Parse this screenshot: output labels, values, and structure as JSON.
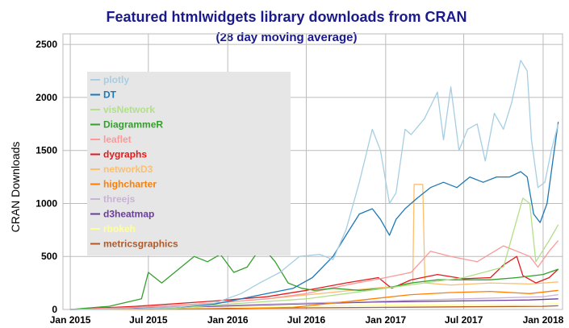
{
  "chart_data": {
    "type": "line",
    "title": "Featured htmlwidgets library downloads from CRAN",
    "subtitle": "(28 day moving average)",
    "xlabel": "",
    "ylabel": "CRAN Downloads",
    "ylim": [
      0,
      2600
    ],
    "yticks": [
      0,
      500,
      1000,
      1500,
      2000,
      2500
    ],
    "xlim": [
      "2014-12-15",
      "2018-02-15"
    ],
    "xticks": [
      {
        "date": "2015-01-01",
        "label": "Jan 2015"
      },
      {
        "date": "2015-07-01",
        "label": "Jul 2015"
      },
      {
        "date": "2016-01-01",
        "label": "Jan 2016"
      },
      {
        "date": "2016-07-01",
        "label": "Jul 2016"
      },
      {
        "date": "2017-01-01",
        "label": "Jan 2017"
      },
      {
        "date": "2017-07-01",
        "label": "Jul 2017"
      },
      {
        "date": "2018-01-01",
        "label": "Jan 2018"
      }
    ],
    "grid": true,
    "legend_position": "top-left",
    "series": [
      {
        "name": "plotly",
        "color": "#a6cee3",
        "points": [
          [
            "2015-01-01",
            0
          ],
          [
            "2015-06-01",
            5
          ],
          [
            "2015-09-01",
            20
          ],
          [
            "2015-12-01",
            60
          ],
          [
            "2016-02-01",
            150
          ],
          [
            "2016-03-15",
            250
          ],
          [
            "2016-05-01",
            350
          ],
          [
            "2016-06-15",
            500
          ],
          [
            "2016-08-01",
            520
          ],
          [
            "2016-09-01",
            470
          ],
          [
            "2016-10-01",
            750
          ],
          [
            "2016-11-01",
            1200
          ],
          [
            "2016-12-01",
            1700
          ],
          [
            "2016-12-20",
            1500
          ],
          [
            "2017-01-10",
            1000
          ],
          [
            "2017-01-25",
            1100
          ],
          [
            "2017-02-15",
            1700
          ],
          [
            "2017-03-01",
            1650
          ],
          [
            "2017-04-01",
            1800
          ],
          [
            "2017-05-01",
            2050
          ],
          [
            "2017-05-15",
            1600
          ],
          [
            "2017-06-01",
            2100
          ],
          [
            "2017-06-20",
            1500
          ],
          [
            "2017-07-10",
            1700
          ],
          [
            "2017-08-01",
            1750
          ],
          [
            "2017-08-20",
            1400
          ],
          [
            "2017-09-10",
            1850
          ],
          [
            "2017-10-01",
            1700
          ],
          [
            "2017-10-20",
            1950
          ],
          [
            "2017-11-10",
            2350
          ],
          [
            "2017-11-25",
            2250
          ],
          [
            "2017-12-05",
            1600
          ],
          [
            "2017-12-20",
            1150
          ],
          [
            "2018-01-05",
            1200
          ],
          [
            "2018-01-20",
            1500
          ],
          [
            "2018-02-05",
            1750
          ]
        ]
      },
      {
        "name": "DT",
        "color": "#1f78b4",
        "points": [
          [
            "2015-01-01",
            0
          ],
          [
            "2015-06-01",
            5
          ],
          [
            "2015-09-01",
            20
          ],
          [
            "2015-12-01",
            50
          ],
          [
            "2016-02-01",
            100
          ],
          [
            "2016-04-01",
            150
          ],
          [
            "2016-06-01",
            200
          ],
          [
            "2016-07-15",
            300
          ],
          [
            "2016-09-01",
            500
          ],
          [
            "2016-10-01",
            700
          ],
          [
            "2016-11-01",
            900
          ],
          [
            "2016-12-01",
            950
          ],
          [
            "2016-12-20",
            850
          ],
          [
            "2017-01-10",
            700
          ],
          [
            "2017-01-25",
            850
          ],
          [
            "2017-02-15",
            950
          ],
          [
            "2017-03-15",
            1050
          ],
          [
            "2017-04-15",
            1150
          ],
          [
            "2017-05-15",
            1200
          ],
          [
            "2017-06-15",
            1150
          ],
          [
            "2017-07-15",
            1250
          ],
          [
            "2017-08-15",
            1200
          ],
          [
            "2017-09-15",
            1250
          ],
          [
            "2017-10-15",
            1250
          ],
          [
            "2017-11-10",
            1300
          ],
          [
            "2017-11-25",
            1250
          ],
          [
            "2017-12-10",
            900
          ],
          [
            "2017-12-25",
            820
          ],
          [
            "2018-01-10",
            1000
          ],
          [
            "2018-01-25",
            1450
          ],
          [
            "2018-02-05",
            1770
          ]
        ]
      },
      {
        "name": "visNetwork",
        "color": "#b2df8a",
        "points": [
          [
            "2015-01-01",
            0
          ],
          [
            "2015-09-01",
            10
          ],
          [
            "2016-01-01",
            50
          ],
          [
            "2016-07-01",
            100
          ],
          [
            "2016-10-01",
            150
          ],
          [
            "2017-01-01",
            200
          ],
          [
            "2017-04-01",
            250
          ],
          [
            "2017-07-01",
            300
          ],
          [
            "2017-10-01",
            400
          ],
          [
            "2017-11-15",
            1050
          ],
          [
            "2017-12-01",
            1000
          ],
          [
            "2017-12-15",
            450
          ],
          [
            "2018-01-15",
            650
          ],
          [
            "2018-02-05",
            800
          ]
        ]
      },
      {
        "name": "DiagrammeR",
        "color": "#33a02c",
        "points": [
          [
            "2015-01-01",
            0
          ],
          [
            "2015-04-01",
            30
          ],
          [
            "2015-06-15",
            100
          ],
          [
            "2015-07-01",
            350
          ],
          [
            "2015-08-01",
            250
          ],
          [
            "2015-09-15",
            400
          ],
          [
            "2015-10-15",
            500
          ],
          [
            "2015-11-15",
            450
          ],
          [
            "2015-12-15",
            520
          ],
          [
            "2016-01-15",
            350
          ],
          [
            "2016-02-15",
            400
          ],
          [
            "2016-03-20",
            600
          ],
          [
            "2016-04-20",
            450
          ],
          [
            "2016-05-20",
            250
          ],
          [
            "2016-06-20",
            200
          ],
          [
            "2016-07-20",
            180
          ],
          [
            "2016-09-01",
            200
          ],
          [
            "2016-11-01",
            180
          ],
          [
            "2017-01-01",
            200
          ],
          [
            "2017-03-01",
            250
          ],
          [
            "2017-05-01",
            280
          ],
          [
            "2017-07-01",
            280
          ],
          [
            "2017-09-01",
            280
          ],
          [
            "2017-11-01",
            300
          ],
          [
            "2018-01-01",
            330
          ],
          [
            "2018-02-05",
            380
          ]
        ]
      },
      {
        "name": "leaflet",
        "color": "#fb9a99",
        "points": [
          [
            "2015-01-01",
            0
          ],
          [
            "2015-06-01",
            20
          ],
          [
            "2015-12-01",
            60
          ],
          [
            "2016-04-01",
            100
          ],
          [
            "2016-07-01",
            150
          ],
          [
            "2016-10-01",
            230
          ],
          [
            "2017-01-01",
            300
          ],
          [
            "2017-03-01",
            350
          ],
          [
            "2017-04-15",
            550
          ],
          [
            "2017-06-01",
            500
          ],
          [
            "2017-08-01",
            450
          ],
          [
            "2017-10-01",
            600
          ],
          [
            "2017-12-01",
            500
          ],
          [
            "2017-12-20",
            400
          ],
          [
            "2018-01-15",
            550
          ],
          [
            "2018-02-05",
            650
          ]
        ]
      },
      {
        "name": "dygraphs",
        "color": "#e31a1c",
        "points": [
          [
            "2015-01-01",
            0
          ],
          [
            "2015-06-01",
            30
          ],
          [
            "2015-12-01",
            80
          ],
          [
            "2016-04-01",
            120
          ],
          [
            "2016-07-01",
            180
          ],
          [
            "2016-10-01",
            250
          ],
          [
            "2016-12-15",
            300
          ],
          [
            "2017-01-15",
            200
          ],
          [
            "2017-03-01",
            280
          ],
          [
            "2017-05-01",
            330
          ],
          [
            "2017-07-01",
            290
          ],
          [
            "2017-09-01",
            300
          ],
          [
            "2017-10-01",
            420
          ],
          [
            "2017-11-01",
            500
          ],
          [
            "2017-11-15",
            320
          ],
          [
            "2017-12-15",
            250
          ],
          [
            "2018-01-15",
            300
          ],
          [
            "2018-02-05",
            380
          ]
        ]
      },
      {
        "name": "networkD3",
        "color": "#fdbf6f",
        "points": [
          [
            "2015-01-01",
            0
          ],
          [
            "2015-06-01",
            20
          ],
          [
            "2015-12-01",
            60
          ],
          [
            "2016-04-01",
            100
          ],
          [
            "2016-08-01",
            150
          ],
          [
            "2016-12-01",
            200
          ],
          [
            "2017-02-01",
            220
          ],
          [
            "2017-03-05",
            250
          ],
          [
            "2017-03-08",
            1180
          ],
          [
            "2017-03-28",
            1180
          ],
          [
            "2017-04-02",
            250
          ],
          [
            "2017-06-01",
            230
          ],
          [
            "2017-09-01",
            250
          ],
          [
            "2017-12-01",
            240
          ],
          [
            "2018-02-05",
            260
          ]
        ]
      },
      {
        "name": "highcharter",
        "color": "#ff7f00",
        "points": [
          [
            "2015-01-01",
            0
          ],
          [
            "2016-01-01",
            5
          ],
          [
            "2016-06-01",
            20
          ],
          [
            "2016-09-01",
            60
          ],
          [
            "2016-12-01",
            100
          ],
          [
            "2017-03-01",
            140
          ],
          [
            "2017-06-01",
            160
          ],
          [
            "2017-09-01",
            170
          ],
          [
            "2017-12-01",
            150
          ],
          [
            "2018-02-05",
            180
          ]
        ]
      },
      {
        "name": "threejs",
        "color": "#cab2d6",
        "points": [
          [
            "2015-01-01",
            0
          ],
          [
            "2015-06-01",
            20
          ],
          [
            "2016-01-01",
            40
          ],
          [
            "2016-07-01",
            60
          ],
          [
            "2017-01-01",
            80
          ],
          [
            "2017-07-01",
            100
          ],
          [
            "2018-01-01",
            120
          ],
          [
            "2018-02-05",
            140
          ]
        ]
      },
      {
        "name": "d3heatmap",
        "color": "#6a3d9a",
        "points": [
          [
            "2015-01-01",
            0
          ],
          [
            "2015-06-01",
            10
          ],
          [
            "2015-12-01",
            30
          ],
          [
            "2016-06-01",
            50
          ],
          [
            "2016-12-01",
            70
          ],
          [
            "2017-06-01",
            80
          ],
          [
            "2017-12-01",
            90
          ],
          [
            "2018-02-05",
            100
          ]
        ]
      },
      {
        "name": "rbokeh",
        "color": "#ffff99",
        "points": [
          [
            "2015-01-01",
            0
          ],
          [
            "2015-06-01",
            10
          ],
          [
            "2016-01-01",
            20
          ],
          [
            "2016-07-01",
            30
          ],
          [
            "2017-01-01",
            40
          ],
          [
            "2017-07-01",
            45
          ],
          [
            "2018-01-01",
            50
          ],
          [
            "2018-02-05",
            55
          ]
        ]
      },
      {
        "name": "metricsgraphics",
        "color": "#b15928",
        "points": [
          [
            "2015-01-01",
            0
          ],
          [
            "2015-06-01",
            5
          ],
          [
            "2016-01-01",
            10
          ],
          [
            "2016-07-01",
            15
          ],
          [
            "2017-01-01",
            20
          ],
          [
            "2017-07-01",
            25
          ],
          [
            "2018-01-01",
            30
          ],
          [
            "2018-02-05",
            35
          ]
        ]
      }
    ]
  }
}
